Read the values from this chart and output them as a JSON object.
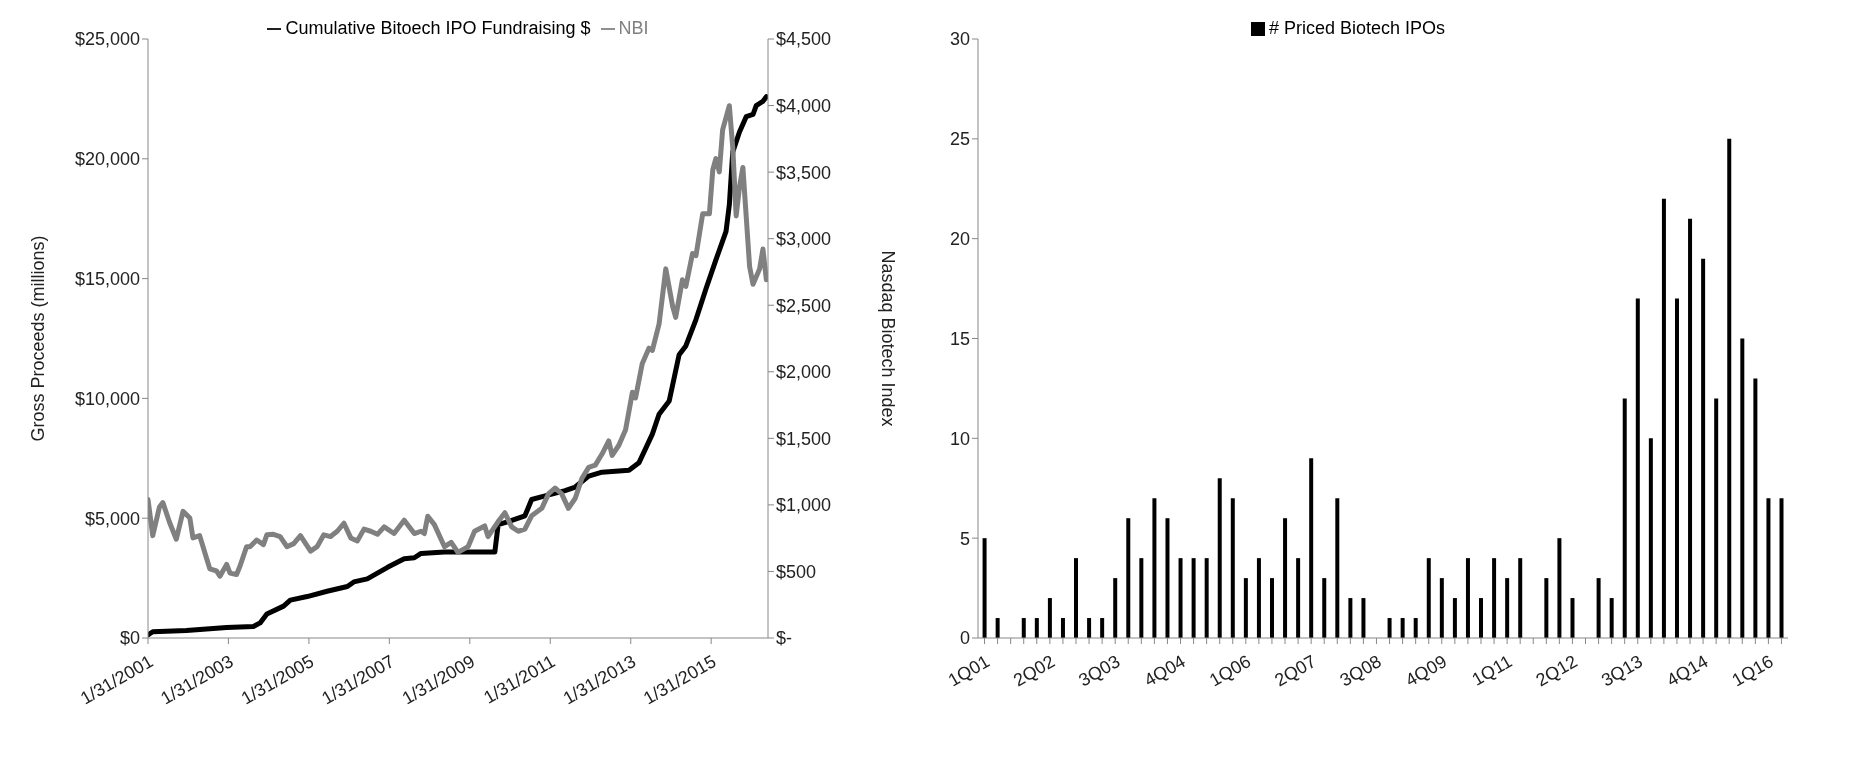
{
  "chart_data": [
    {
      "type": "line",
      "ylabel": "Gross Proceeds (millions)",
      "y2label": "Nasdaq Biotech Index",
      "legend": "top",
      "grid": false,
      "marker": "none",
      "line_style": "solid",
      "xlim": [
        "2001-01-31",
        "2016-06-30"
      ],
      "xticks": [
        {
          "value": "2001-01-31",
          "label": "1/31/2001"
        },
        {
          "value": "2003-01-31",
          "label": "1/31/2003"
        },
        {
          "value": "2005-01-31",
          "label": "1/31/2005"
        },
        {
          "value": "2007-01-31",
          "label": "1/31/2007"
        },
        {
          "value": "2009-01-31",
          "label": "1/31/2009"
        },
        {
          "value": "2011-01-31",
          "label": "1/31/2011"
        },
        {
          "value": "2013-01-31",
          "label": "1/31/2013"
        },
        {
          "value": "2015-01-31",
          "label": "1/31/2015"
        }
      ],
      "ylim": [
        0,
        25000
      ],
      "yticks": [
        {
          "value": 0,
          "label": "$0"
        },
        {
          "value": 5000,
          "label": "$5,000"
        },
        {
          "value": 10000,
          "label": "$10,000"
        },
        {
          "value": 15000,
          "label": "$15,000"
        },
        {
          "value": 20000,
          "label": "$20,000"
        },
        {
          "value": 25000,
          "label": "$25,000"
        }
      ],
      "y2lim": [
        0,
        4500
      ],
      "y2ticks": [
        {
          "value": 0,
          "label": "$-"
        },
        {
          "value": 500,
          "label": "$500"
        },
        {
          "value": 1000,
          "label": "$1,000"
        },
        {
          "value": 1500,
          "label": "$1,500"
        },
        {
          "value": 2000,
          "label": "$2,000"
        },
        {
          "value": 2500,
          "label": "$2,500"
        },
        {
          "value": 3000,
          "label": "$3,000"
        },
        {
          "value": 3500,
          "label": "$3,500"
        },
        {
          "value": 4000,
          "label": "$4,000"
        },
        {
          "value": 4500,
          "label": "$4,500"
        }
      ],
      "series": [
        {
          "name": "Cumulative Bitoech IPO Fundraising $",
          "color": "#000000",
          "x": [
            "2001-01-31",
            "2001-03",
            "2002-01",
            "2003-01",
            "2003-09",
            "2003-11",
            "2004-01",
            "2004-06",
            "2004-08",
            "2005-01",
            "2005-07",
            "2006-01",
            "2006-03",
            "2006-07",
            "2007-01",
            "2007-06",
            "2007-09",
            "2007-11",
            "2008-06",
            "2009-01",
            "2009-09",
            "2009-10",
            "2010-01",
            "2010-06",
            "2010-08",
            "2010-12",
            "2011-06",
            "2011-09",
            "2012-01",
            "2012-05",
            "2013-01",
            "2013-04",
            "2013-08",
            "2013-10",
            "2014-01",
            "2014-04",
            "2014-06",
            "2014-09",
            "2014-12",
            "2015-03",
            "2015-06",
            "2015-07",
            "2015-08",
            "2015-10",
            "2015-12",
            "2016-02",
            "2016-03",
            "2016-05",
            "2016-06"
          ],
          "values": [
            130,
            260,
            310,
            440,
            480,
            630,
            1000,
            1330,
            1580,
            1730,
            1950,
            2150,
            2340,
            2470,
            2950,
            3310,
            3350,
            3530,
            3590,
            3590,
            3590,
            4730,
            4860,
            5100,
            5780,
            5930,
            6150,
            6300,
            6760,
            6920,
            7000,
            7310,
            8510,
            9340,
            9890,
            11820,
            12190,
            13290,
            14580,
            15780,
            16970,
            18080,
            20290,
            21120,
            21760,
            21850,
            22220,
            22400,
            22590
          ]
        },
        {
          "name": "NBI",
          "color": "#808080",
          "axis": "y2",
          "x": [
            "2001-01-31",
            "2001-03",
            "2001-05",
            "2001-06",
            "2001-08",
            "2001-10",
            "2001-12",
            "2002-02",
            "2002-03",
            "2002-05",
            "2002-07",
            "2002-08",
            "2002-10",
            "2002-11",
            "2003-01",
            "2003-02",
            "2003-04",
            "2003-05",
            "2003-07",
            "2003-08",
            "2003-10",
            "2003-12",
            "2004-01",
            "2004-03",
            "2004-05",
            "2004-07",
            "2004-09",
            "2004-11",
            "2005-02",
            "2005-04",
            "2005-06",
            "2005-08",
            "2005-10",
            "2005-12",
            "2006-02",
            "2006-04",
            "2006-06",
            "2006-08",
            "2006-10",
            "2006-12",
            "2007-03",
            "2007-06",
            "2007-09",
            "2007-11",
            "2007-12",
            "2008-01",
            "2008-03",
            "2008-06",
            "2008-08",
            "2008-10",
            "2009-01",
            "2009-03",
            "2009-06",
            "2009-07",
            "2009-10",
            "2009-12",
            "2010-02",
            "2010-04",
            "2010-06",
            "2010-08",
            "2010-11",
            "2011-01",
            "2011-03",
            "2011-05",
            "2011-07",
            "2011-09",
            "2011-11",
            "2012-01",
            "2012-03",
            "2012-05",
            "2012-07",
            "2012-08",
            "2012-10",
            "2012-12",
            "2013-02",
            "2013-03",
            "2013-05",
            "2013-07",
            "2013-08",
            "2013-10",
            "2013-12",
            "2014-02",
            "2014-03",
            "2014-05",
            "2014-06",
            "2014-08",
            "2014-09",
            "2014-11",
            "2015-01",
            "2015-02",
            "2015-03",
            "2015-04",
            "2015-05",
            "2015-07",
            "2015-08",
            "2015-09",
            "2015-10",
            "2015-11",
            "2016-01",
            "2016-02",
            "2016-04",
            "2016-05",
            "2016-06"
          ],
          "values": [
            1040,
            769,
            984,
            1017,
            868,
            742,
            951,
            901,
            752,
            769,
            603,
            520,
            504,
            464,
            553,
            487,
            477,
            537,
            686,
            686,
            736,
            702,
            775,
            779,
            762,
            686,
            709,
            769,
            653,
            686,
            775,
            762,
            802,
            862,
            752,
            729,
            818,
            802,
            779,
            835,
            785,
            885,
            785,
            802,
            785,
            915,
            852,
            686,
            719,
            643,
            686,
            802,
            842,
            762,
            875,
            941,
            835,
            802,
            818,
            918,
            974,
            1083,
            1127,
            1083,
            974,
            1050,
            1200,
            1282,
            1299,
            1382,
            1481,
            1372,
            1448,
            1564,
            1846,
            1803,
            2061,
            2177,
            2160,
            2359,
            2773,
            2492,
            2409,
            2691,
            2641,
            2889,
            2873,
            3187,
            3187,
            3519,
            3602,
            3502,
            3817,
            3999,
            3685,
            3171,
            3386,
            3535,
            2790,
            2657,
            2773,
            2922,
            2691
          ]
        }
      ]
    },
    {
      "type": "bar",
      "legend": "top",
      "grid": false,
      "categories": [
        "1Q01",
        null,
        null,
        null,
        null,
        "2Q02",
        null,
        null,
        null,
        null,
        "3Q03",
        null,
        null,
        null,
        null,
        "4Q04",
        null,
        null,
        null,
        null,
        "1Q06",
        null,
        null,
        null,
        null,
        "2Q07",
        null,
        null,
        null,
        null,
        "3Q08",
        null,
        null,
        null,
        null,
        "4Q09",
        null,
        null,
        null,
        null,
        "1Q11",
        null,
        null,
        null,
        null,
        "2Q12",
        null,
        null,
        null,
        null,
        "3Q13",
        null,
        null,
        null,
        null,
        "4Q14",
        null,
        null,
        null,
        null,
        "1Q16",
        null
      ],
      "ylim": [
        0,
        30
      ],
      "yticks": [
        0,
        5,
        10,
        15,
        20,
        25,
        30
      ],
      "series": [
        {
          "name": "# Priced Biotech IPOs",
          "color": "#000000",
          "values": [
            5,
            1,
            0,
            1,
            1,
            2,
            1,
            4,
            1,
            1,
            3,
            6,
            4,
            7,
            6,
            4,
            4,
            4,
            8,
            7,
            3,
            4,
            3,
            6,
            4,
            9,
            3,
            7,
            2,
            2,
            0,
            1,
            1,
            1,
            4,
            3,
            2,
            4,
            2,
            4,
            3,
            4,
            0,
            3,
            5,
            2,
            0,
            3,
            2,
            12,
            17,
            10,
            22,
            17,
            21,
            19,
            12,
            25,
            15,
            13,
            7,
            7
          ]
        }
      ]
    }
  ]
}
